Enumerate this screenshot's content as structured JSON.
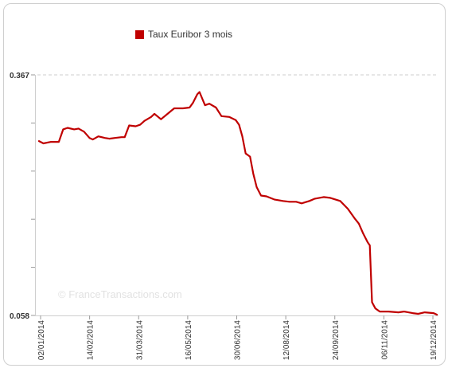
{
  "chart_data": {
    "type": "line",
    "title": "",
    "xlabel": "",
    "ylabel": "",
    "ylim": [
      0.058,
      0.367
    ],
    "y_ticks": [
      "0.367",
      "0.058"
    ],
    "x_ticks": [
      "02/01/2014",
      "14/02/2014",
      "31/03/2014",
      "16/05/2014",
      "30/06/2014",
      "12/08/2014",
      "24/09/2014",
      "06/11/2014",
      "19/12/2014"
    ],
    "x_range": [
      "2014-01-02",
      "2014-12-30"
    ],
    "legend_position": "top-left",
    "grid": "top border line only",
    "watermark": "© FranceTransactions.com",
    "series": [
      {
        "name": "Taux Euribor 3 mois",
        "color": "#c00000",
        "points": [
          [
            "2014-01-02",
            0.282
          ],
          [
            "2014-01-06",
            0.279
          ],
          [
            "2014-01-13",
            0.281
          ],
          [
            "2014-01-20",
            0.281
          ],
          [
            "2014-01-24",
            0.297
          ],
          [
            "2014-01-28",
            0.299
          ],
          [
            "2014-02-03",
            0.297
          ],
          [
            "2014-02-07",
            0.298
          ],
          [
            "2014-02-12",
            0.294
          ],
          [
            "2014-02-17",
            0.286
          ],
          [
            "2014-02-20",
            0.284
          ],
          [
            "2014-02-25",
            0.288
          ],
          [
            "2014-03-03",
            0.286
          ],
          [
            "2014-03-07",
            0.285
          ],
          [
            "2014-03-12",
            0.286
          ],
          [
            "2014-03-18",
            0.287
          ],
          [
            "2014-03-21",
            0.287
          ],
          [
            "2014-03-25",
            0.302
          ],
          [
            "2014-03-31",
            0.301
          ],
          [
            "2014-04-04",
            0.303
          ],
          [
            "2014-04-08",
            0.308
          ],
          [
            "2014-04-14",
            0.313
          ],
          [
            "2014-04-17",
            0.317
          ],
          [
            "2014-04-23",
            0.31
          ],
          [
            "2014-04-29",
            0.317
          ],
          [
            "2014-05-05",
            0.324
          ],
          [
            "2014-05-13",
            0.324
          ],
          [
            "2014-05-19",
            0.325
          ],
          [
            "2014-05-22",
            0.331
          ],
          [
            "2014-05-26",
            0.342
          ],
          [
            "2014-05-28",
            0.345
          ],
          [
            "2014-06-02",
            0.328
          ],
          [
            "2014-06-06",
            0.33
          ],
          [
            "2014-06-12",
            0.325
          ],
          [
            "2014-06-17",
            0.314
          ],
          [
            "2014-06-24",
            0.313
          ],
          [
            "2014-06-30",
            0.309
          ],
          [
            "2014-07-03",
            0.303
          ],
          [
            "2014-07-06",
            0.288
          ],
          [
            "2014-07-09",
            0.266
          ],
          [
            "2014-07-13",
            0.262
          ],
          [
            "2014-07-16",
            0.24
          ],
          [
            "2014-07-19",
            0.223
          ],
          [
            "2014-07-23",
            0.212
          ],
          [
            "2014-07-28",
            0.211
          ],
          [
            "2014-08-04",
            0.207
          ],
          [
            "2014-08-12",
            0.205
          ],
          [
            "2014-08-18",
            0.204
          ],
          [
            "2014-08-24",
            0.204
          ],
          [
            "2014-08-29",
            0.202
          ],
          [
            "2014-09-05",
            0.205
          ],
          [
            "2014-09-10",
            0.208
          ],
          [
            "2014-09-18",
            0.21
          ],
          [
            "2014-09-24",
            0.209
          ],
          [
            "2014-10-03",
            0.205
          ],
          [
            "2014-10-10",
            0.195
          ],
          [
            "2014-10-16",
            0.183
          ],
          [
            "2014-10-20",
            0.176
          ],
          [
            "2014-10-24",
            0.163
          ],
          [
            "2014-10-28",
            0.152
          ],
          [
            "2014-10-30",
            0.148
          ],
          [
            "2014-11-01",
            0.075
          ],
          [
            "2014-11-04",
            0.067
          ],
          [
            "2014-11-08",
            0.063
          ],
          [
            "2014-11-16",
            0.063
          ],
          [
            "2014-11-25",
            0.062
          ],
          [
            "2014-11-30",
            0.063
          ],
          [
            "2014-12-04",
            0.062
          ],
          [
            "2014-12-08",
            0.061
          ],
          [
            "2014-12-13",
            0.06
          ],
          [
            "2014-12-19",
            0.062
          ],
          [
            "2014-12-27",
            0.061
          ],
          [
            "2014-12-30",
            0.059
          ]
        ]
      }
    ]
  }
}
